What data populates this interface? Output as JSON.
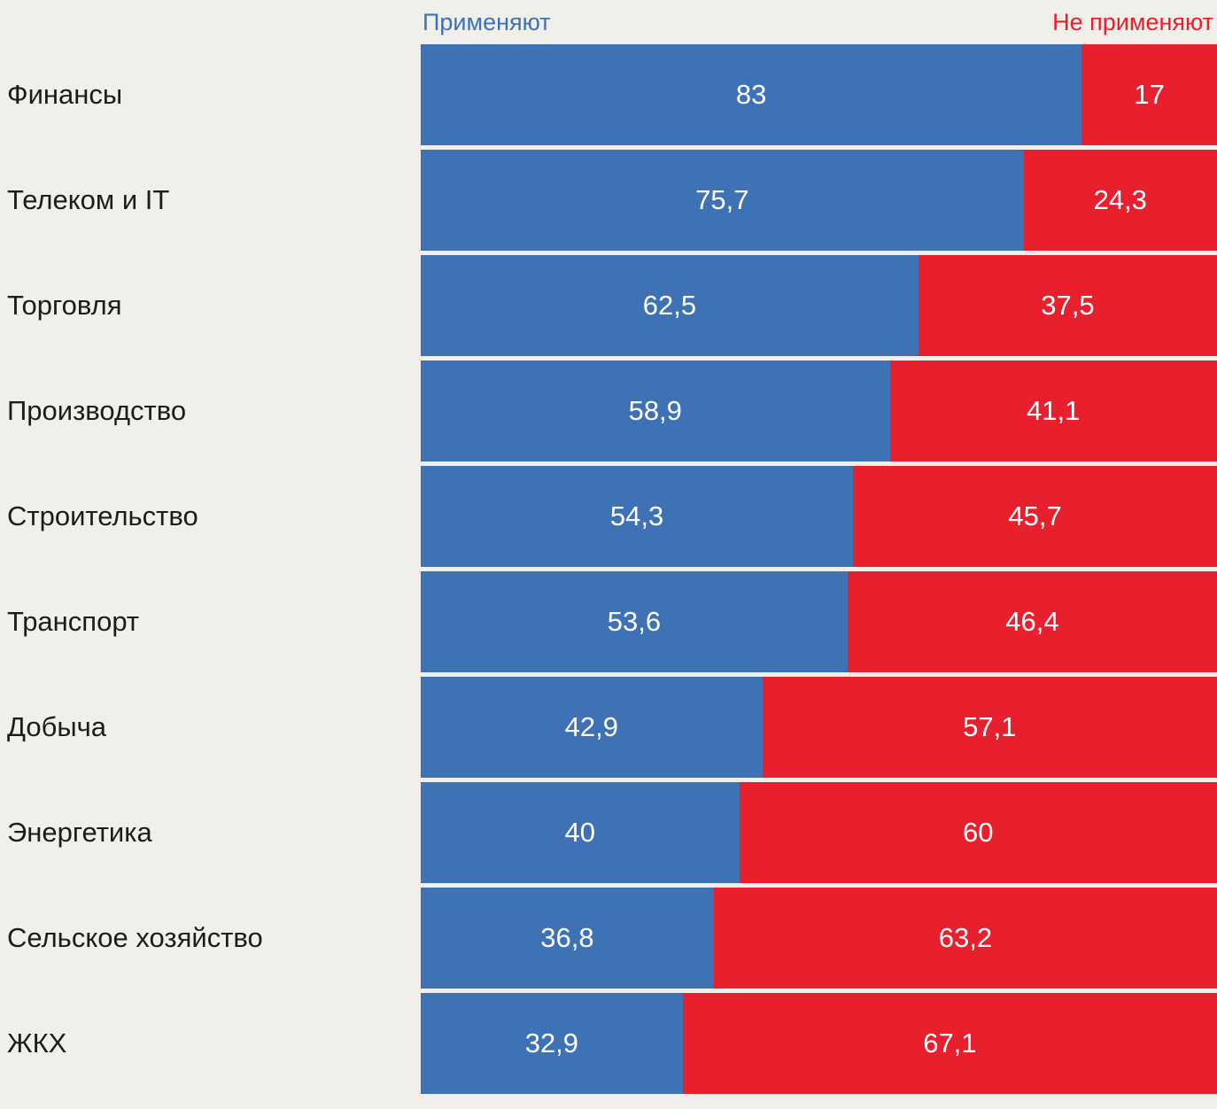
{
  "chart_data": {
    "type": "bar",
    "orientation": "horizontal",
    "stacked": true,
    "unit": "percent",
    "xlim": [
      0,
      100
    ],
    "legend_position": "top",
    "grid": false,
    "background_color": "#f0efea",
    "categories": [
      "Финансы",
      "Телеком и IT",
      "Торговля",
      "Производство",
      "Строительство",
      "Транспорт",
      "Добыча",
      "Энергетика",
      "Сельское хозяйство",
      "ЖКХ"
    ],
    "series": [
      {
        "name": "Применяют",
        "color": "#3e72b5",
        "values": [
          83,
          75.7,
          62.5,
          58.9,
          54.3,
          53.6,
          42.9,
          40,
          36.8,
          32.9
        ],
        "labels": [
          "83",
          "75,7",
          "62,5",
          "58,9",
          "54,3",
          "53,6",
          "42,9",
          "40",
          "36,8",
          "32,9"
        ]
      },
      {
        "name": "Не применяют",
        "color": "#e8202e",
        "values": [
          17,
          24.3,
          37.5,
          41.1,
          45.7,
          46.4,
          57.1,
          60,
          63.2,
          67.1
        ],
        "labels": [
          "17",
          "24,3",
          "37,5",
          "41,1",
          "45,7",
          "46,4",
          "57,1",
          "60",
          "63,2",
          "67,1"
        ]
      }
    ]
  }
}
